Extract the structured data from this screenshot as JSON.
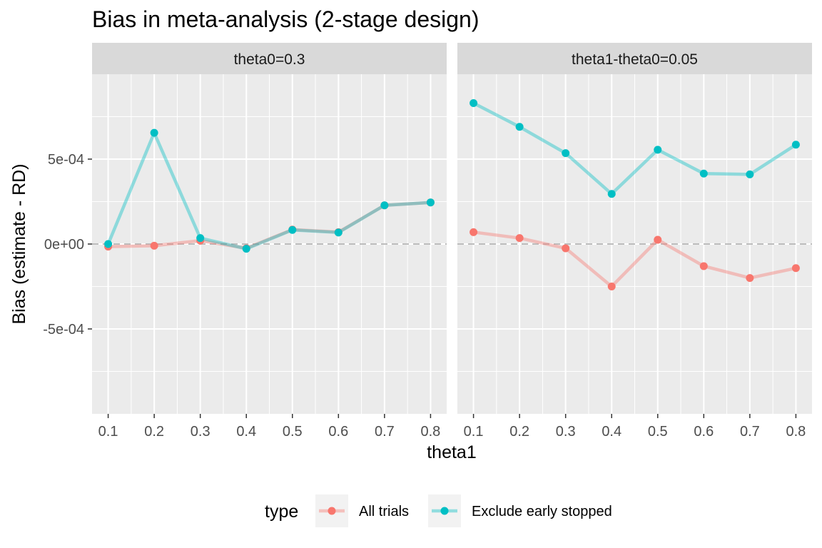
{
  "chart_data": {
    "type": "line",
    "title": "Bias in meta-analysis (2-stage design)",
    "xlabel": "theta1",
    "ylabel": "Bias (estimate - RD)",
    "ylim": [
      -0.001,
      0.001
    ],
    "y_ticks": [
      -0.0005,
      0,
      0.0005
    ],
    "y_tick_labels": [
      "-5e-04",
      "0e+00",
      "5e-04"
    ],
    "x_ticks": [
      0.1,
      0.2,
      0.3,
      0.4,
      0.5,
      0.6,
      0.7,
      0.8
    ],
    "x_tick_labels": [
      "0.1",
      "0.2",
      "0.3",
      "0.4",
      "0.5",
      "0.6",
      "0.7",
      "0.8"
    ],
    "reference_line": 0,
    "grid": true,
    "legend_position": "bottom",
    "legend_title": "type",
    "series_styles": [
      {
        "name": "All trials",
        "color": "#F8766D"
      },
      {
        "name": "Exclude early stopped",
        "color": "#00BFC4"
      }
    ],
    "panels": [
      {
        "strip": "theta0=0.3",
        "series": [
          {
            "name": "All trials",
            "x": [
              0.1,
              0.2,
              0.3,
              0.4,
              0.5,
              0.6,
              0.7,
              0.8
            ],
            "values": [
              -1.5e-05,
              -1e-05,
              2e-05,
              -2.5e-05,
              8.5e-05,
              7e-05,
              0.000228,
              0.000245
            ]
          },
          {
            "name": "Exclude early stopped",
            "x": [
              0.1,
              0.2,
              0.3,
              0.4,
              0.5,
              0.6,
              0.7,
              0.8
            ],
            "values": [
              0.0,
              0.000655,
              3.5e-05,
              -2.8e-05,
              8.3e-05,
              6.8e-05,
              0.000228,
              0.000245
            ]
          }
        ]
      },
      {
        "strip": "theta1-theta0=0.05",
        "series": [
          {
            "name": "All trials",
            "x": [
              0.1,
              0.2,
              0.3,
              0.4,
              0.5,
              0.6,
              0.7,
              0.8
            ],
            "values": [
              7e-05,
              3.5e-05,
              -2.5e-05,
              -0.00025,
              2.5e-05,
              -0.00013,
              -0.0002,
              -0.000142
            ]
          },
          {
            "name": "Exclude early stopped",
            "x": [
              0.1,
              0.2,
              0.3,
              0.4,
              0.5,
              0.6,
              0.7,
              0.8
            ],
            "values": [
              0.00083,
              0.00069,
              0.000535,
              0.000295,
              0.000555,
              0.000415,
              0.00041,
              0.000585
            ]
          }
        ]
      }
    ]
  }
}
